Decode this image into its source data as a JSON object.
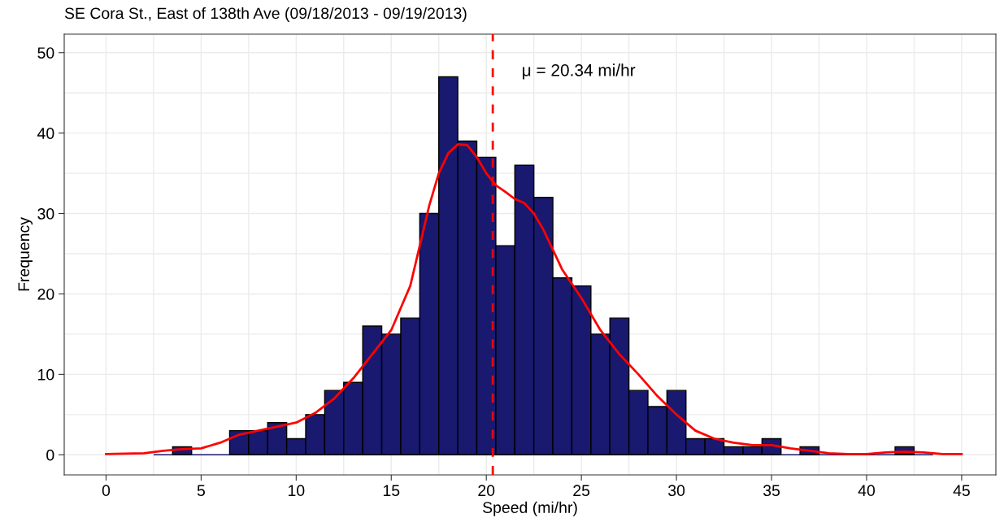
{
  "chart_data": {
    "type": "histogram",
    "title": "SE Cora St., East of 138th Ave (09/18/2013 - 09/19/2013)",
    "xlabel": "Speed (mi/hr)",
    "ylabel": "Frequency",
    "color": "#191970",
    "bins": [
      2.5,
      3.5,
      4.5,
      5.5,
      6.5,
      7.5,
      8.5,
      9.5,
      10.5,
      11.5,
      12.5,
      13.5,
      14.5,
      15.5,
      16.5,
      17.5,
      18.5,
      19.5,
      20.5,
      21.5,
      22.5,
      23.5,
      24.5,
      25.5,
      26.5,
      27.5,
      28.5,
      29.5,
      30.5,
      31.5,
      32.5,
      33.5,
      34.5,
      35.5,
      36.5,
      37.5,
      38.5,
      39.5,
      40.5,
      41.5,
      42.5,
      43.5
    ],
    "values": [
      0,
      1,
      0,
      0,
      3,
      3,
      4,
      2,
      5,
      8,
      9,
      16,
      15,
      17,
      30,
      47,
      39,
      37,
      26,
      36,
      32,
      22,
      21,
      15,
      17,
      8,
      6,
      8,
      2,
      2,
      1,
      1,
      2,
      0,
      1,
      0,
      0,
      0,
      0,
      1,
      0
    ],
    "series": [
      {
        "type": "line",
        "color": "#ff0000",
        "x": [
          0,
          2,
          3,
          4,
          5,
          6,
          7,
          8,
          9,
          10,
          11,
          12,
          13,
          14,
          15,
          16,
          16.5,
          17,
          17.5,
          18,
          18.5,
          19,
          19.5,
          20,
          20.5,
          21,
          21.5,
          22,
          22.5,
          23,
          23.5,
          24,
          25,
          26,
          27,
          28,
          29,
          30,
          31,
          32,
          33,
          34,
          35,
          36,
          37,
          38,
          39,
          40,
          41,
          42,
          43,
          44,
          45
        ],
        "values": [
          0.1,
          0.2,
          0.5,
          0.7,
          0.8,
          1.5,
          2.5,
          3.0,
          3.5,
          4.0,
          5.2,
          7.0,
          9.5,
          12.5,
          15.5,
          21,
          26,
          31,
          35,
          37.5,
          38.6,
          38.5,
          37,
          35,
          33.5,
          32.7,
          31.8,
          31.3,
          30,
          28,
          25.5,
          23,
          19.5,
          15.5,
          12.5,
          10,
          7.3,
          5,
          3,
          2,
          1.5,
          1.2,
          1.2,
          0.8,
          0.5,
          0.2,
          0.1,
          0.1,
          0.3,
          0.4,
          0.3,
          0.1,
          0.1
        ]
      }
    ],
    "ref_lines": [
      {
        "axis": "x",
        "value": 20.34,
        "color": "#ff0000",
        "line_style": "dashed"
      }
    ],
    "annotations": [
      "μ = 20.34 mi/hr"
    ],
    "xlim": [
      -2.2,
      46.8
    ],
    "ylim": [
      -2.5,
      52.3
    ],
    "xticks": [
      0,
      {
        "value": 2.5,
        "label": null
      },
      5,
      {
        "value": 7.5,
        "label": null
      },
      10,
      {
        "value": 12.5,
        "label": null
      },
      15,
      {
        "value": 17.5,
        "label": null
      },
      20,
      {
        "value": 22.5,
        "label": null
      },
      25,
      {
        "value": 27.5,
        "label": null
      },
      30,
      {
        "value": 32.5,
        "label": null
      },
      35,
      {
        "value": 37.5,
        "label": null
      },
      40,
      {
        "value": 42.5,
        "label": null
      },
      45
    ],
    "yticks": [
      0,
      {
        "value": 5,
        "label": null
      },
      10,
      {
        "value": 15,
        "label": null
      },
      20,
      {
        "value": 25,
        "label": null
      },
      30,
      {
        "value": 35,
        "label": null
      },
      40,
      {
        "value": 45,
        "label": null
      },
      50
    ],
    "grid": true
  }
}
